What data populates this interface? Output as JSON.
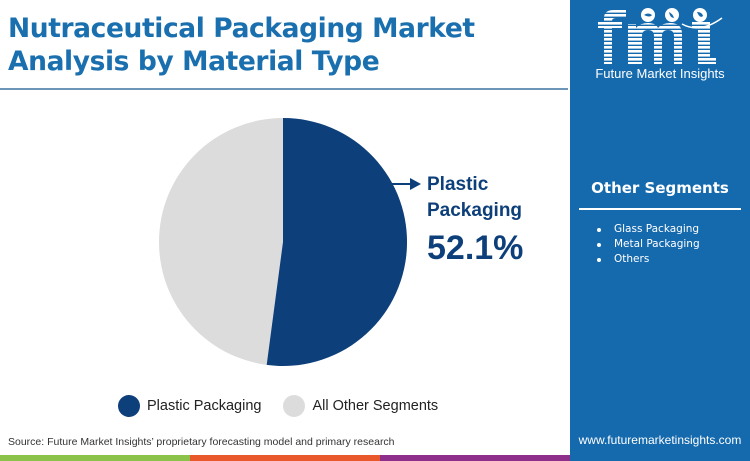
{
  "header": {
    "title_line1": "Nutraceutical Packaging Market",
    "title_line2": "Analysis by Material Type"
  },
  "brand": {
    "logo_text": "fmi",
    "name": "Future Market Insights",
    "website": "www.futuremarketinsights.com"
  },
  "sidebar": {
    "title": "Other Segments",
    "items": [
      "Glass Packaging",
      "Metal Packaging",
      "Others"
    ]
  },
  "callout": {
    "label": "Plastic Packaging",
    "value": "52.1%"
  },
  "legend": [
    {
      "label": "Plastic Packaging",
      "color": "#0d3f7a"
    },
    {
      "label": "All Other Segments",
      "color": "#dcdcdc"
    }
  ],
  "source": "Source: Future Market Insights’ proprietary forecasting model and primary research",
  "colors": {
    "title": "#1a6fae",
    "sidebar_bg": "#1569ad",
    "primary_slice": "#0d3f7a",
    "other_slice": "#dcdcdc",
    "footer_bars": [
      "#8bc34a",
      "#e8582a",
      "#8e2f8c"
    ]
  },
  "chart_data": {
    "type": "pie",
    "title": "Nutraceutical Packaging Market Analysis by Material Type",
    "categories": [
      "Plastic Packaging",
      "All Other Segments"
    ],
    "values": [
      52.1,
      47.9
    ],
    "unit": "%",
    "colors": [
      "#0d3f7a",
      "#dcdcdc"
    ],
    "annotations": [
      {
        "label": "Plastic Packaging",
        "value": "52.1%"
      }
    ],
    "legend_position": "bottom",
    "start_angle_deg": 0,
    "direction": "clockwise"
  }
}
